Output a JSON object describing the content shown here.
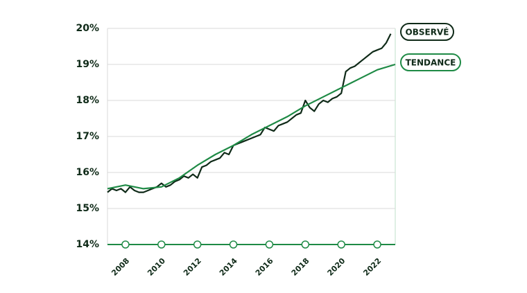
{
  "chart_data": {
    "type": "line",
    "xlim": [
      2007,
      2023
    ],
    "xticks": [
      2008,
      2010,
      2012,
      2014,
      2016,
      2018,
      2020,
      2022
    ],
    "ylim": [
      14,
      20
    ],
    "yticks": [
      {
        "value": 14,
        "label": "14%"
      },
      {
        "value": 15,
        "label": "15%"
      },
      {
        "value": 16,
        "label": "16%"
      },
      {
        "value": 17,
        "label": "17%"
      },
      {
        "value": 18,
        "label": "18%"
      },
      {
        "value": 19,
        "label": "19%"
      },
      {
        "value": 20,
        "label": "20%"
      }
    ],
    "grid": true,
    "series": [
      {
        "name": "OBSERVÉ",
        "color": "#0f2a18",
        "x": [
          2007,
          2007.25,
          2007.5,
          2007.75,
          2008,
          2008.25,
          2008.5,
          2008.75,
          2009,
          2009.25,
          2009.5,
          2009.75,
          2010,
          2010.25,
          2010.5,
          2010.75,
          2011,
          2011.25,
          2011.5,
          2011.75,
          2012,
          2012.25,
          2012.5,
          2012.75,
          2013,
          2013.25,
          2013.5,
          2013.75,
          2014,
          2014.25,
          2014.5,
          2014.75,
          2015,
          2015.25,
          2015.5,
          2015.75,
          2016,
          2016.25,
          2016.5,
          2016.75,
          2017,
          2017.25,
          2017.5,
          2017.75,
          2018,
          2018.25,
          2018.5,
          2018.75,
          2019,
          2019.25,
          2019.5,
          2019.75,
          2020,
          2020.25,
          2020.5,
          2020.75,
          2021,
          2021.25,
          2021.5,
          2021.75,
          2022,
          2022.25,
          2022.5,
          2022.75
        ],
        "values": [
          15.45,
          15.55,
          15.5,
          15.55,
          15.45,
          15.6,
          15.5,
          15.45,
          15.45,
          15.5,
          15.55,
          15.6,
          15.7,
          15.6,
          15.65,
          15.75,
          15.8,
          15.9,
          15.85,
          15.95,
          15.85,
          16.15,
          16.2,
          16.3,
          16.35,
          16.4,
          16.55,
          16.5,
          16.75,
          16.8,
          16.85,
          16.9,
          16.95,
          17.0,
          17.05,
          17.25,
          17.2,
          17.15,
          17.3,
          17.35,
          17.4,
          17.5,
          17.6,
          17.65,
          18.0,
          17.8,
          17.7,
          17.9,
          18.0,
          17.95,
          18.05,
          18.1,
          18.2,
          18.8,
          18.9,
          18.95,
          19.05,
          19.15,
          19.25,
          19.35,
          19.4,
          19.45,
          19.6,
          19.85
        ]
      },
      {
        "name": "TENDANCE",
        "color": "#1e8a45",
        "x": [
          2007,
          2008,
          2009,
          2010,
          2011,
          2012,
          2013,
          2014,
          2015,
          2016,
          2017,
          2018,
          2019,
          2020,
          2021,
          2022,
          2023
        ],
        "values": [
          15.55,
          15.65,
          15.55,
          15.6,
          15.85,
          16.2,
          16.5,
          16.75,
          17.05,
          17.3,
          17.55,
          17.85,
          18.1,
          18.35,
          18.6,
          18.85,
          19.0
        ]
      }
    ]
  }
}
